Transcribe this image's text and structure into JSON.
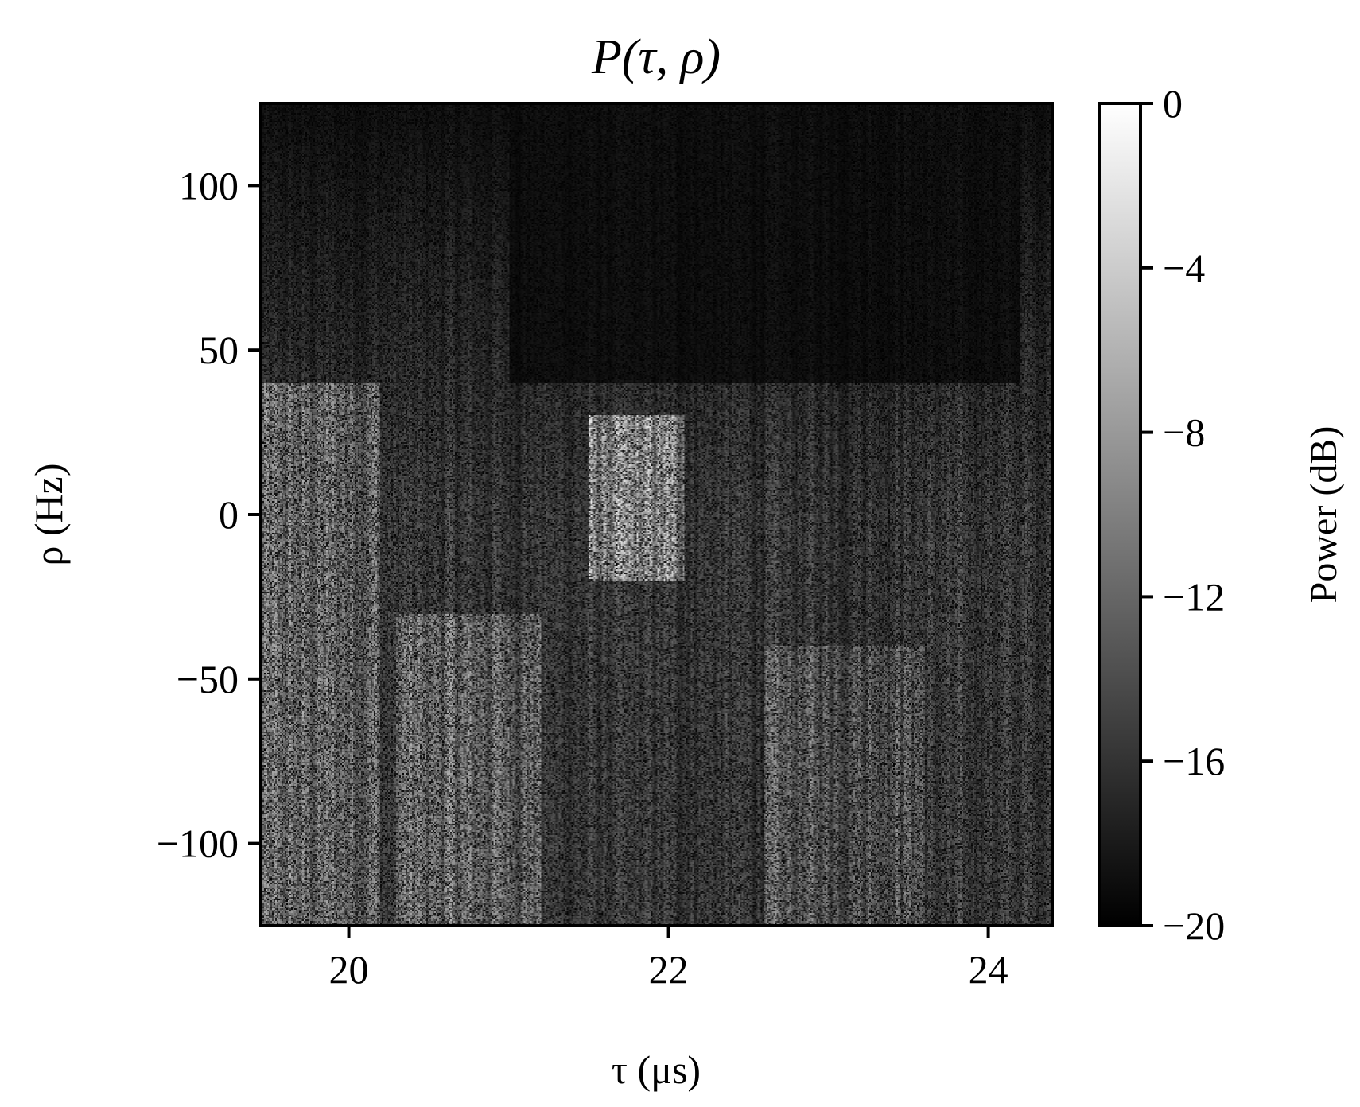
{
  "chart_data": {
    "type": "heatmap",
    "title": "P(τ, ρ)",
    "xlabel": "τ (μs)",
    "ylabel": "ρ (Hz)",
    "xlim": [
      19.45,
      24.4
    ],
    "ylim": [
      -125,
      125
    ],
    "xticks": [
      {
        "value": 20,
        "label": "20"
      },
      {
        "value": 22,
        "label": "22"
      },
      {
        "value": 24,
        "label": "24"
      }
    ],
    "yticks": [
      {
        "value": 100,
        "label": "100"
      },
      {
        "value": 50,
        "label": "50"
      },
      {
        "value": 0,
        "label": "0"
      },
      {
        "value": -50,
        "label": "−50"
      },
      {
        "value": -100,
        "label": "−100"
      }
    ],
    "colorbar": {
      "label": "Power (dB)",
      "range": [
        -20,
        0
      ],
      "colormap": "gray",
      "ticks": [
        {
          "value": 0,
          "label": "0"
        },
        {
          "value": -4,
          "label": "−4"
        },
        {
          "value": -8,
          "label": "−8"
        },
        {
          "value": -12,
          "label": "−12"
        },
        {
          "value": -16,
          "label": "−16"
        },
        {
          "value": -20,
          "label": "−20"
        }
      ]
    },
    "intensity_regions": [
      {
        "tau": [
          19.45,
          20.2
        ],
        "rho": [
          -125,
          40
        ],
        "level_db": -13
      },
      {
        "tau": [
          20.3,
          21.2
        ],
        "rho": [
          -125,
          -30
        ],
        "level_db": -13
      },
      {
        "tau": [
          21.5,
          22.1
        ],
        "rho": [
          -20,
          30
        ],
        "level_db": -11
      },
      {
        "tau": [
          22.6,
          23.6
        ],
        "rho": [
          -125,
          -40
        ],
        "level_db": -14
      },
      {
        "tau": [
          21.0,
          24.2
        ],
        "rho": [
          40,
          125
        ],
        "level_db": -19
      }
    ]
  }
}
